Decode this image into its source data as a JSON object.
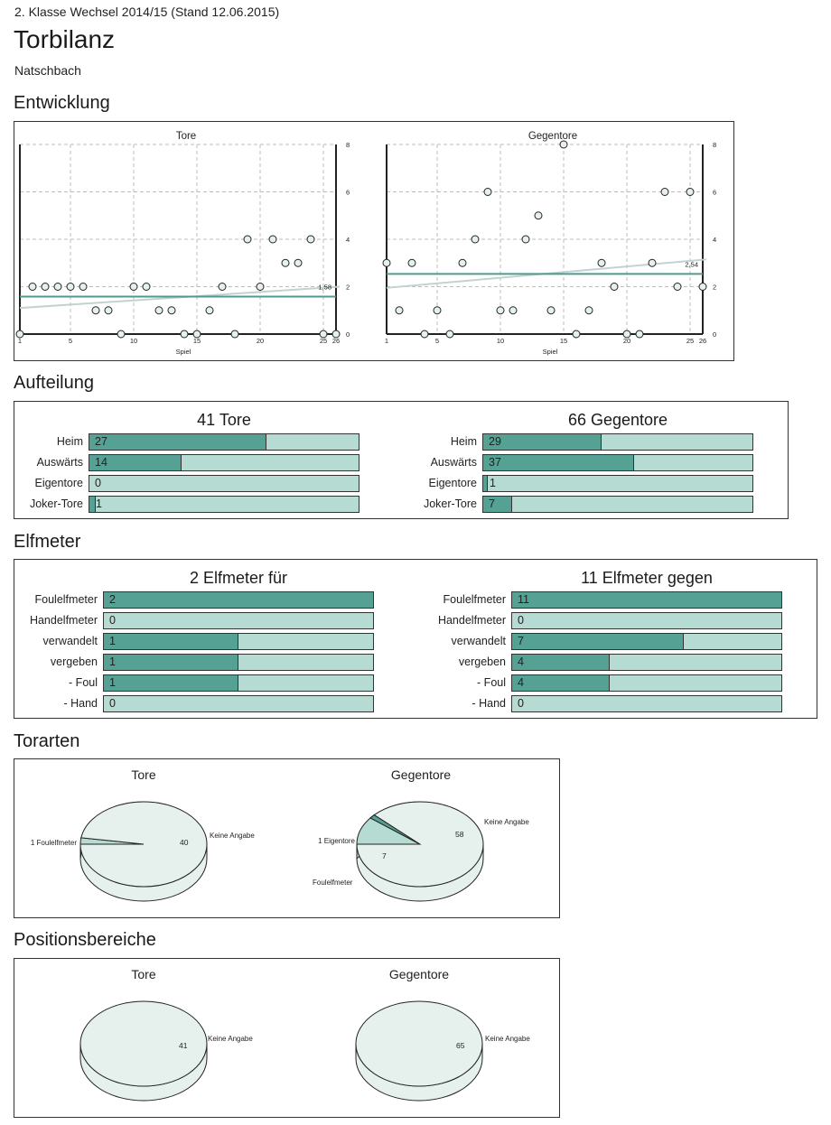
{
  "header": {
    "subtitle": "2. Klasse Wechsel 2014/15 (Stand 12.06.2015)",
    "title": "Torbilanz",
    "team": "Natschbach"
  },
  "sections": {
    "entwicklung": "Entwicklung",
    "aufteilung": "Aufteilung",
    "elfmeter": "Elfmeter",
    "torarten": "Torarten",
    "positionsbereiche": "Positionsbereiche"
  },
  "colors": {
    "bar_fill": "#55a194",
    "bar_track": "#b6dbd3",
    "avg_line": "#4e9a8c",
    "trend_line": "#c3d2d0",
    "pie_main": "#e6f0ed",
    "pie_slice_light": "#b6dbd3",
    "pie_slice_dark": "#55a194"
  },
  "chart_data": [
    {
      "id": "entwicklung-tore",
      "type": "scatter",
      "title": "Tore",
      "xlabel": "Spiel",
      "ylabel": "",
      "xlim": [
        1,
        26
      ],
      "ylim": [
        0,
        8
      ],
      "xticks": [
        "1",
        "5",
        "10",
        "15",
        "20",
        "25",
        "26"
      ],
      "yticks": [
        "0",
        "2",
        "4",
        "6",
        "8"
      ],
      "grid": true,
      "x": [
        1,
        2,
        3,
        4,
        5,
        6,
        7,
        8,
        9,
        10,
        11,
        12,
        13,
        14,
        15,
        16,
        17,
        18,
        19,
        20,
        21,
        22,
        23,
        24,
        25,
        26
      ],
      "values": [
        0,
        2,
        2,
        2,
        2,
        2,
        1,
        1,
        0,
        2,
        2,
        1,
        1,
        0,
        0,
        1,
        2,
        0,
        4,
        2,
        4,
        3,
        3,
        4,
        0,
        0
      ],
      "average": 1.58,
      "average_label": "1,58",
      "trend": [
        1.1,
        2.0
      ]
    },
    {
      "id": "entwicklung-gegentore",
      "type": "scatter",
      "title": "Gegentore",
      "xlabel": "Spiel",
      "ylabel": "",
      "xlim": [
        1,
        26
      ],
      "ylim": [
        0,
        8
      ],
      "xticks": [
        "1",
        "5",
        "10",
        "15",
        "20",
        "25",
        "26"
      ],
      "yticks": [
        "0",
        "2",
        "4",
        "6",
        "8"
      ],
      "grid": true,
      "x": [
        1,
        2,
        3,
        4,
        5,
        6,
        7,
        8,
        9,
        10,
        11,
        12,
        13,
        14,
        15,
        16,
        17,
        18,
        19,
        20,
        21,
        22,
        23,
        24,
        25,
        26
      ],
      "values": [
        3,
        1,
        3,
        0,
        1,
        0,
        3,
        4,
        6,
        1,
        1,
        4,
        5,
        1,
        8,
        0,
        1,
        3,
        2,
        0,
        0,
        3,
        6,
        2,
        6,
        2
      ],
      "average": 2.54,
      "average_label": "2,54",
      "trend": [
        1.95,
        3.15
      ]
    },
    {
      "id": "aufteilung-tore",
      "type": "bar",
      "title": "41 Tore",
      "total": 41,
      "categories": [
        "Heim",
        "Auswärts",
        "Eigentore",
        "Joker-Tore"
      ],
      "values": [
        27,
        14,
        0,
        1
      ]
    },
    {
      "id": "aufteilung-gegentore",
      "type": "bar",
      "title": "66 Gegentore",
      "total": 66,
      "categories": [
        "Heim",
        "Auswärts",
        "Eigentore",
        "Joker-Tore"
      ],
      "values": [
        29,
        37,
        1,
        7
      ]
    },
    {
      "id": "elfmeter-fuer",
      "type": "bar",
      "title": "2 Elfmeter für",
      "total": 2,
      "categories": [
        "Foulelfmeter",
        "Handelfmeter",
        "verwandelt",
        "vergeben",
        "- Foul",
        "- Hand"
      ],
      "values": [
        2,
        0,
        1,
        1,
        1,
        0
      ]
    },
    {
      "id": "elfmeter-gegen",
      "type": "bar",
      "title": "11 Elfmeter gegen",
      "total": 11,
      "categories": [
        "Foulelfmeter",
        "Handelfmeter",
        "verwandelt",
        "vergeben",
        "- Foul",
        "- Hand"
      ],
      "values": [
        11,
        0,
        7,
        4,
        4,
        0
      ]
    },
    {
      "id": "torarten-tore",
      "type": "pie",
      "title": "Tore",
      "slices": [
        {
          "label": "Keine Angabe",
          "value": 40,
          "value_label": "40"
        },
        {
          "label": "1 Foulelfmeter",
          "value": 1,
          "value_label": ""
        }
      ]
    },
    {
      "id": "torarten-gegentore",
      "type": "pie",
      "title": "Gegentore",
      "slices": [
        {
          "label": "Keine Angabe",
          "value": 58,
          "value_label": "58"
        },
        {
          "label": "1 Eigentore",
          "value": 1,
          "value_label": ""
        },
        {
          "label": "Foulelfmeter",
          "value": 7,
          "value_label": "7"
        }
      ]
    },
    {
      "id": "positionen-tore",
      "type": "pie",
      "title": "Tore",
      "slices": [
        {
          "label": "Keine Angabe",
          "value": 41,
          "value_label": "41"
        }
      ]
    },
    {
      "id": "positionen-gegentore",
      "type": "pie",
      "title": "Gegentore",
      "slices": [
        {
          "label": "Keine Angabe",
          "value": 65,
          "value_label": "65"
        }
      ]
    }
  ]
}
